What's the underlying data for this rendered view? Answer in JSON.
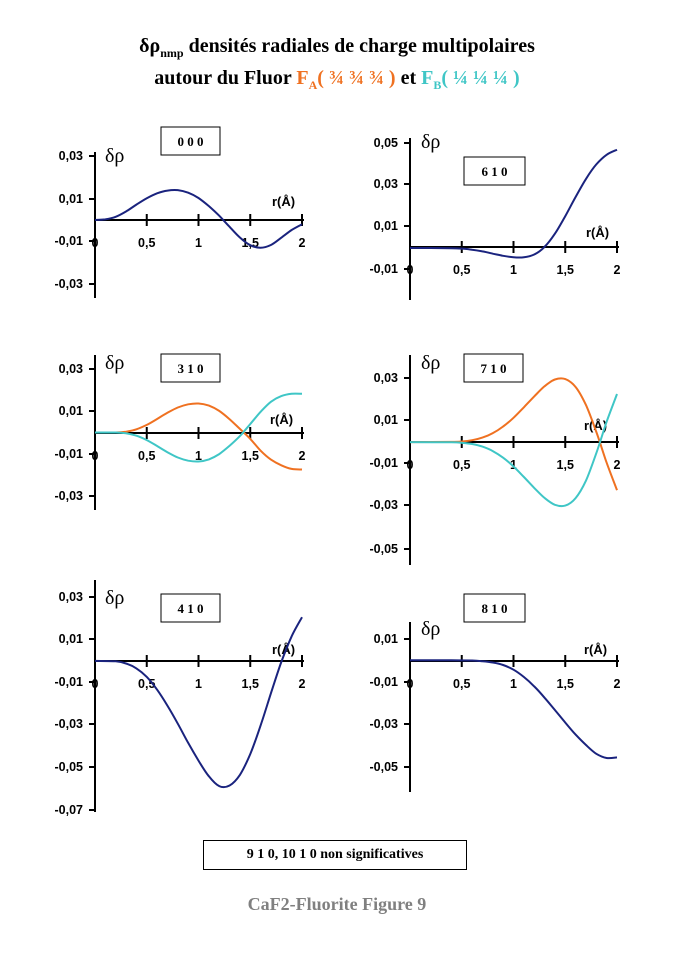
{
  "title": {
    "prefix": "δρ",
    "prefix_sub": "nmp",
    "line1_rest": " densités radiales de charge multipolaires",
    "line2_pre": "autour du Fluor ",
    "fa": "F",
    "fa_sub": "A",
    "fa_rest": "( ¾ ¾ ¾ )",
    "and": " et ",
    "fb": "F",
    "fb_sub": "B",
    "fb_rest": "( ¼ ¼ ¼ )"
  },
  "colors": {
    "single": "#1a237e",
    "FA": "#ef7121",
    "FB": "#3fc6c6"
  },
  "note": "9 1 0, 10 1 0   non significatives",
  "caption": "CaF2-Fluorite   Figure 9",
  "chart_data": [
    {
      "type": "line",
      "label": "0 0 0",
      "ylabel": "δρ",
      "xlabel": "r(Å)",
      "xticks": [
        "0",
        "0,5",
        "1",
        "1,5",
        "2"
      ],
      "yticks": [
        "-0,03",
        "-0,01",
        "0,01",
        "0,03"
      ],
      "xlim": [
        0,
        2
      ],
      "ylim": [
        -0.03,
        0.03
      ],
      "series": [
        {
          "color": "#1a237e",
          "x": [
            0,
            0.1,
            0.2,
            0.3,
            0.4,
            0.5,
            0.6,
            0.7,
            0.8,
            0.9,
            1.0,
            1.1,
            1.2,
            1.3,
            1.4,
            1.5,
            1.6,
            1.7,
            1.8,
            1.9,
            2.0
          ],
          "y": [
            0,
            0.0003,
            0.0015,
            0.004,
            0.0072,
            0.0102,
            0.0125,
            0.0138,
            0.014,
            0.0128,
            0.0103,
            0.0065,
            0.002,
            -0.0032,
            -0.0082,
            -0.0118,
            -0.013,
            -0.0117,
            -0.0083,
            -0.0047,
            -0.002
          ]
        }
      ]
    },
    {
      "type": "line",
      "label": "6 1 0",
      "ylabel": "δρ",
      "xlabel": "r(Å)",
      "xticks": [
        "0",
        "0,5",
        "1",
        "1,5",
        "2"
      ],
      "yticks": [
        "-0,01",
        "0,01",
        "0,03",
        "0,05"
      ],
      "xlim": [
        0,
        2
      ],
      "ylim": [
        -0.01,
        0.05
      ],
      "series": [
        {
          "color": "#1a237e",
          "x": [
            0,
            0.2,
            0.4,
            0.5,
            0.6,
            0.7,
            0.8,
            0.9,
            1.0,
            1.1,
            1.2,
            1.3,
            1.4,
            1.5,
            1.6,
            1.7,
            1.8,
            1.9,
            2.0
          ],
          "y": [
            0,
            0,
            -0.0001,
            -0.0003,
            -0.0008,
            -0.0016,
            -0.0027,
            -0.0037,
            -0.0044,
            -0.0044,
            -0.0031,
            0.0005,
            0.0068,
            0.0152,
            0.0243,
            0.0329,
            0.0398,
            0.0444,
            0.0468
          ]
        }
      ]
    },
    {
      "type": "line",
      "label": "3 1 0",
      "ylabel": "δρ",
      "xlabel": "r(Å)",
      "xticks": [
        "0",
        "0,5",
        "1",
        "1,5",
        "2"
      ],
      "yticks": [
        "-0,03",
        "-0,01",
        "0,01",
        "0,03"
      ],
      "xlim": [
        0,
        2
      ],
      "ylim": [
        -0.03,
        0.03
      ],
      "series": [
        {
          "name": "F_A",
          "color": "#ef7121",
          "x": [
            0,
            0.2,
            0.3,
            0.4,
            0.5,
            0.6,
            0.7,
            0.8,
            0.9,
            1.0,
            1.1,
            1.2,
            1.3,
            1.4,
            1.5,
            1.6,
            1.7,
            1.8,
            1.9,
            2.0
          ],
          "y": [
            0,
            0,
            0.0004,
            0.0015,
            0.0036,
            0.0064,
            0.0093,
            0.0118,
            0.0133,
            0.0137,
            0.0127,
            0.0102,
            0.0063,
            0.0017,
            -0.003,
            -0.0086,
            -0.0128,
            -0.0155,
            -0.0172,
            -0.0175
          ]
        },
        {
          "name": "F_B",
          "color": "#3fc6c6",
          "x": [
            0,
            0.2,
            0.3,
            0.4,
            0.5,
            0.6,
            0.7,
            0.8,
            0.9,
            1.0,
            1.1,
            1.2,
            1.3,
            1.4,
            1.5,
            1.6,
            1.7,
            1.8,
            1.9,
            2.0
          ],
          "y": [
            0,
            0,
            -0.0004,
            -0.0015,
            -0.0036,
            -0.0064,
            -0.0093,
            -0.0118,
            -0.0133,
            -0.0137,
            -0.0127,
            -0.0102,
            -0.0063,
            -0.0017,
            0.004,
            0.0098,
            0.0145,
            0.0172,
            0.0183,
            0.0183
          ]
        }
      ]
    },
    {
      "type": "line",
      "label": "7 1 0",
      "ylabel": "δρ",
      "xlabel": "r(Å)",
      "xticks": [
        "0",
        "0,5",
        "1",
        "1,5",
        "2"
      ],
      "yticks": [
        "-0,05",
        "-0,03",
        "-0,01",
        "0,01",
        "0,03"
      ],
      "xlim": [
        0,
        2
      ],
      "ylim": [
        -0.05,
        0.03
      ],
      "series": [
        {
          "name": "F_A",
          "color": "#ef7121",
          "x": [
            0,
            0.4,
            0.5,
            0.6,
            0.7,
            0.8,
            0.9,
            1.0,
            1.1,
            1.2,
            1.3,
            1.4,
            1.5,
            1.6,
            1.7,
            1.8,
            1.9,
            2.0
          ],
          "y": [
            0,
            0.0001,
            0.0003,
            0.0009,
            0.0021,
            0.0042,
            0.0073,
            0.0114,
            0.0163,
            0.0214,
            0.0261,
            0.0293,
            0.0295,
            0.0258,
            0.0173,
            0.0048,
            -0.0096,
            -0.0225
          ]
        },
        {
          "name": "F_B",
          "color": "#3fc6c6",
          "x": [
            0,
            0.4,
            0.5,
            0.6,
            0.7,
            0.8,
            0.9,
            1.0,
            1.1,
            1.2,
            1.3,
            1.4,
            1.5,
            1.6,
            1.7,
            1.8,
            1.9,
            2.0
          ],
          "y": [
            0,
            -0.0001,
            -0.0003,
            -0.0009,
            -0.0021,
            -0.0042,
            -0.0073,
            -0.0114,
            -0.0163,
            -0.0214,
            -0.0261,
            -0.0293,
            -0.0297,
            -0.0262,
            -0.018,
            -0.0052,
            0.0095,
            0.0225
          ]
        }
      ]
    },
    {
      "type": "line",
      "label": "4 1 0",
      "ylabel": "δρ",
      "xlabel": "r(Å)",
      "xticks": [
        "0",
        "0,5",
        "1",
        "1,5",
        "2"
      ],
      "yticks": [
        "-0,07",
        "-0,05",
        "-0,03",
        "-0,01",
        "0,01",
        "0,03"
      ],
      "xlim": [
        0,
        2
      ],
      "ylim": [
        -0.07,
        0.03
      ],
      "series": [
        {
          "color": "#1a237e",
          "x": [
            0,
            0.2,
            0.3,
            0.4,
            0.5,
            0.6,
            0.7,
            0.8,
            0.9,
            1.0,
            1.1,
            1.2,
            1.3,
            1.4,
            1.5,
            1.6,
            1.7,
            1.8,
            1.9,
            2.0
          ],
          "y": [
            0,
            -0.0002,
            -0.0012,
            -0.0035,
            -0.0075,
            -0.0135,
            -0.021,
            -0.0295,
            -0.0385,
            -0.0468,
            -0.0542,
            -0.0588,
            -0.0585,
            -0.0535,
            -0.0437,
            -0.0303,
            -0.0152,
            -0.0005,
            0.0115,
            0.0205
          ]
        }
      ]
    },
    {
      "type": "line",
      "label": "8 1 0",
      "ylabel": "δρ",
      "xlabel": "r(Å)",
      "xticks": [
        "0",
        "0,5",
        "1",
        "1,5",
        "2"
      ],
      "yticks": [
        "-0,05",
        "-0,03",
        "-0,01",
        "0,01"
      ],
      "xlim": [
        0,
        2
      ],
      "ylim": [
        -0.05,
        0.01
      ],
      "series": [
        {
          "color": "#1a237e",
          "x": [
            0,
            0.2,
            0.4,
            0.6,
            0.7,
            0.8,
            0.9,
            1.0,
            1.1,
            1.2,
            1.3,
            1.4,
            1.5,
            1.6,
            1.7,
            1.8,
            1.9,
            2.0
          ],
          "y": [
            0,
            0,
            0,
            -0.0001,
            -0.0004,
            -0.001,
            -0.0022,
            -0.0044,
            -0.0078,
            -0.0122,
            -0.0175,
            -0.0233,
            -0.0292,
            -0.0348,
            -0.0397,
            -0.0438,
            -0.0458,
            -0.0455
          ]
        }
      ]
    }
  ]
}
